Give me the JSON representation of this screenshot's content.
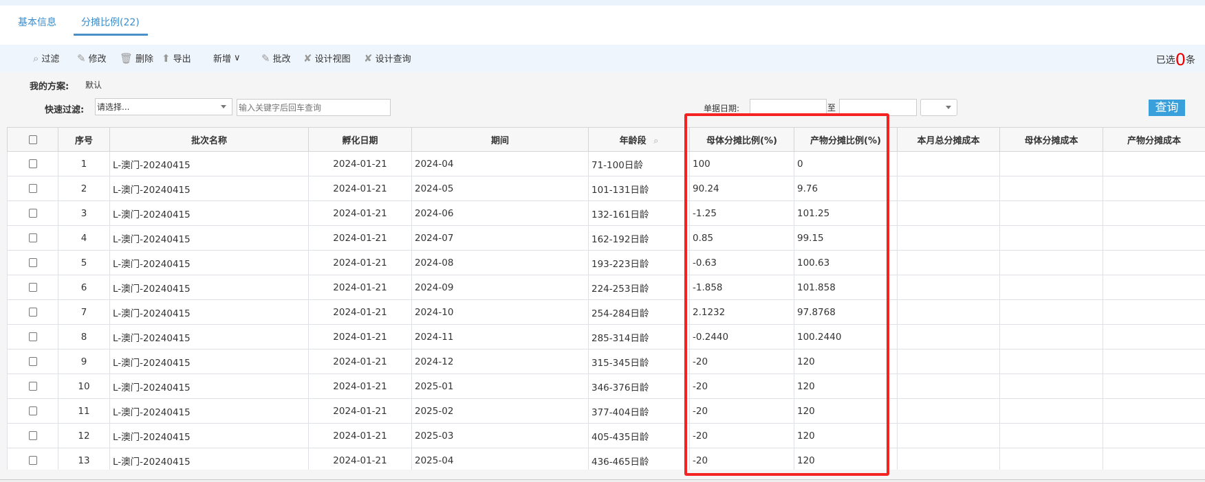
{
  "tabs": [
    {
      "label": "基本信息"
    },
    {
      "label": "分摊比例(22)"
    }
  ],
  "toolbar": {
    "items": [
      {
        "label": "过滤",
        "icon": "search-icon"
      },
      {
        "label": "修改",
        "icon": "pencil-icon"
      },
      {
        "label": "删除",
        "icon": "trash-icon"
      },
      {
        "label": "导出",
        "icon": "export-icon"
      },
      {
        "label": "新增",
        "icon": "chevron-down-icon"
      },
      {
        "label": "批改",
        "icon": "pencil-icon"
      },
      {
        "label": "设计视图",
        "icon": "tools-icon"
      },
      {
        "label": "设计查询",
        "icon": "tools-icon"
      }
    ],
    "selected_prefix": "已选",
    "selected_count": "0",
    "selected_suffix": "条"
  },
  "filters": {
    "scheme_label": "我的方案:",
    "scheme_value": "默认",
    "quick_label": "快速过滤:",
    "quick_select": "请选择...",
    "keyword_placeholder": "输入关键字后回车查询",
    "date_label": "单据日期:",
    "date_to": "至",
    "date_from_value": "",
    "date_to_value": "",
    "query_button": "查询"
  },
  "table": {
    "columns": [
      "序号",
      "批次名称",
      "孵化日期",
      "期间",
      "年龄段",
      "母体分摊比例(%)",
      "产物分摊比例(%)",
      "本月总分摊成本",
      "母体分摊成本",
      "产物分摊成本"
    ],
    "rows": [
      [
        "1",
        "L-澳门-20240415",
        "2024-01-21",
        "2024-04",
        "71-100日龄",
        "100",
        "0",
        "",
        "",
        ""
      ],
      [
        "2",
        "L-澳门-20240415",
        "2024-01-21",
        "2024-05",
        "101-131日龄",
        "90.24",
        "9.76",
        "",
        "",
        ""
      ],
      [
        "3",
        "L-澳门-20240415",
        "2024-01-21",
        "2024-06",
        "132-161日龄",
        "-1.25",
        "101.25",
        "",
        "",
        ""
      ],
      [
        "4",
        "L-澳门-20240415",
        "2024-01-21",
        "2024-07",
        "162-192日龄",
        "0.85",
        "99.15",
        "",
        "",
        ""
      ],
      [
        "5",
        "L-澳门-20240415",
        "2024-01-21",
        "2024-08",
        "193-223日龄",
        "-0.63",
        "100.63",
        "",
        "",
        ""
      ],
      [
        "6",
        "L-澳门-20240415",
        "2024-01-21",
        "2024-09",
        "224-253日龄",
        "-1.858",
        "101.858",
        "",
        "",
        ""
      ],
      [
        "7",
        "L-澳门-20240415",
        "2024-01-21",
        "2024-10",
        "254-284日龄",
        "2.1232",
        "97.8768",
        "",
        "",
        ""
      ],
      [
        "8",
        "L-澳门-20240415",
        "2024-01-21",
        "2024-11",
        "285-314日龄",
        "-0.2440",
        "100.2440",
        "",
        "",
        ""
      ],
      [
        "9",
        "L-澳门-20240415",
        "2024-01-21",
        "2024-12",
        "315-345日龄",
        "-20",
        "120",
        "",
        "",
        ""
      ],
      [
        "10",
        "L-澳门-20240415",
        "2024-01-21",
        "2025-01",
        "346-376日龄",
        "-20",
        "120",
        "",
        "",
        ""
      ],
      [
        "11",
        "L-澳门-20240415",
        "2024-01-21",
        "2025-02",
        "377-404日龄",
        "-20",
        "120",
        "",
        "",
        ""
      ],
      [
        "12",
        "L-澳门-20240415",
        "2024-01-21",
        "2025-03",
        "405-435日龄",
        "-20",
        "120",
        "",
        "",
        ""
      ],
      [
        "13",
        "L-澳门-20240415",
        "2024-01-21",
        "2025-04",
        "436-465日龄",
        "-20",
        "120",
        "",
        "",
        ""
      ]
    ]
  },
  "colors": {
    "accent": "#3a8ccc",
    "highlight_box": "#f52222",
    "query_button": "#3aa0dc",
    "selected_count": "#e00000"
  }
}
